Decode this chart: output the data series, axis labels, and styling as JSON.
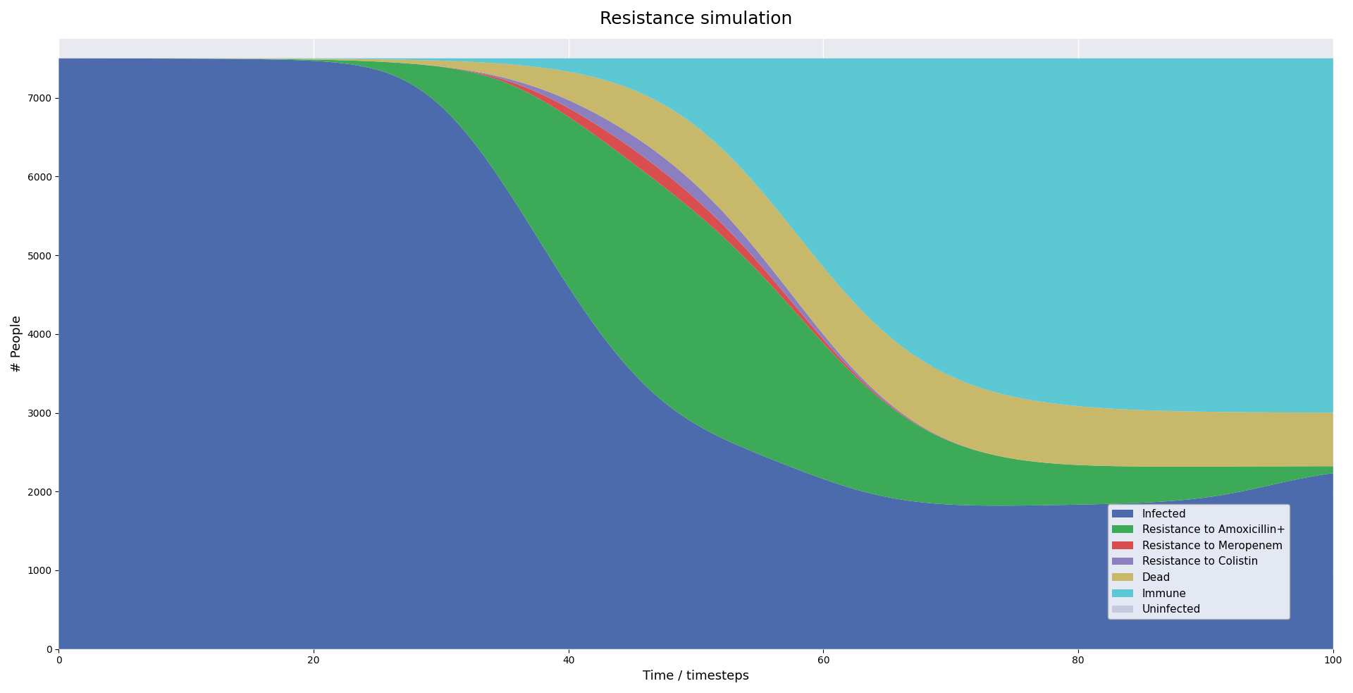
{
  "title": "Resistance simulation",
  "xlabel": "Time / timesteps",
  "ylabel": "# People",
  "xlim": [
    0,
    100
  ],
  "ylim": [
    0,
    7750
  ],
  "yticks": [
    0,
    1000,
    2000,
    3000,
    4000,
    5000,
    6000,
    7000
  ],
  "xticks": [
    0,
    20,
    40,
    60,
    80,
    100
  ],
  "total_population": 7500,
  "layers": [
    "Infected",
    "Resistance to Amoxicillin+",
    "Resistance to Meropenem",
    "Resistance to Colistin",
    "Dead",
    "Immune",
    "Uninfected"
  ],
  "colors": [
    "#4B6BAD",
    "#3DAA57",
    "#D94F4F",
    "#8B7FC0",
    "#C8B86A",
    "#5BC8D4",
    "#C5CAE0"
  ],
  "background_color": "#E8EAF0",
  "figsize": [
    19.2,
    9.83
  ],
  "dpi": 100
}
